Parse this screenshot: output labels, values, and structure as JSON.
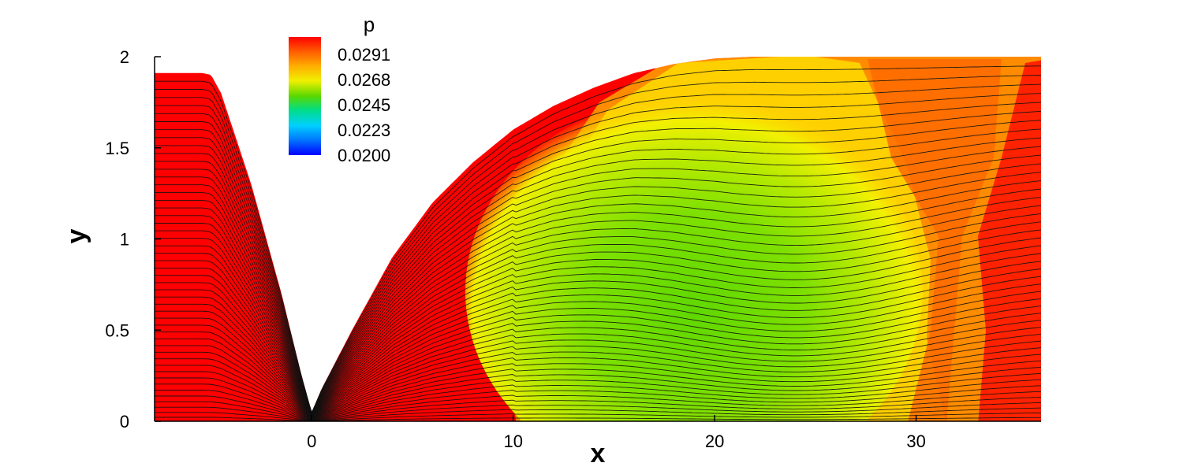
{
  "chart_data": {
    "type": "contour",
    "variable": "p",
    "xlabel": "x",
    "ylabel": "y",
    "xlim": [
      -7.8,
      36.2
    ],
    "ylim": [
      0,
      2
    ],
    "x_ticks": [
      0,
      10,
      20,
      30
    ],
    "x_tick_labels": [
      "0",
      "10",
      "20",
      "30"
    ],
    "y_ticks": [
      0,
      0.5,
      1,
      1.5,
      2
    ],
    "y_tick_labels": [
      "0",
      "0.5",
      "1",
      "1.5",
      "2"
    ],
    "legend": {
      "title": "p",
      "placement": "top-left",
      "levels": [
        0.0291,
        0.0268,
        0.0245,
        0.0223,
        0.02
      ],
      "labels": [
        "0.0291",
        "0.0268",
        "0.0245",
        "0.0223",
        "0.0200"
      ],
      "colors": [
        "#ff0000",
        "#ff8c00",
        "#ffd000",
        "#f0f000",
        "#c0ee00",
        "#7fe000",
        "#3cd800",
        "#00e0a0",
        "#00c8ff",
        "#0060ff",
        "#0000ff"
      ]
    },
    "domain_top_boundary": {
      "x": [
        -7.8,
        -5.4,
        -5.0,
        -4.5,
        -3.0,
        -1.5,
        -0.5,
        0,
        0.5,
        2,
        4,
        6,
        8,
        10,
        12,
        14,
        16,
        18,
        20,
        22,
        36.2
      ],
      "y": [
        1.91,
        1.91,
        1.9,
        1.8,
        1.3,
        0.7,
        0.25,
        0.05,
        0.18,
        0.5,
        0.9,
        1.2,
        1.42,
        1.6,
        1.73,
        1.83,
        1.91,
        1.96,
        1.99,
        2.0,
        2.0
      ]
    },
    "pressure_regions": [
      {
        "level": "0.0291+",
        "x_range": [
          -7.8,
          10
        ],
        "y_range": [
          0,
          2
        ]
      },
      {
        "level": "0.0268",
        "x_range": [
          10,
          13
        ],
        "y_range": [
          0,
          2
        ]
      },
      {
        "level": "0.0245",
        "x_range": [
          13,
          24
        ],
        "y_range": [
          0,
          1.5
        ]
      },
      {
        "level": "0.0268",
        "x_range": [
          24,
          29
        ],
        "y_range": [
          0,
          2
        ]
      },
      {
        "level": "0.0291",
        "x_range": [
          29,
          36.2
        ],
        "y_range": [
          0,
          2
        ]
      }
    ]
  }
}
